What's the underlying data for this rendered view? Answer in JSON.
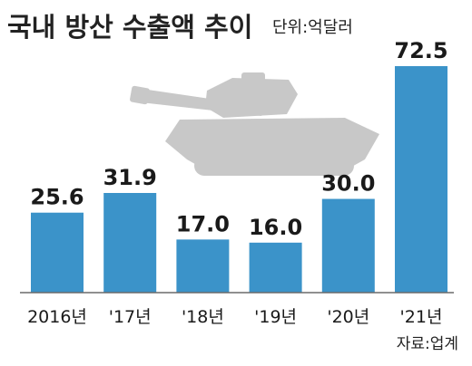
{
  "chart_data": {
    "type": "bar",
    "title": "국내 방산 수출액 추이",
    "unit": "단위:억달러",
    "categories": [
      "2016년",
      "'17년",
      "'18년",
      "'19년",
      "'20년",
      "'21년"
    ],
    "values": [
      25.6,
      31.9,
      17.0,
      16.0,
      30.0,
      72.5
    ],
    "value_labels": [
      "25.6",
      "31.9",
      "17.0",
      "16.0",
      "30.0",
      "72.5"
    ],
    "source": "자료:업계",
    "ylim": [
      0,
      72.5
    ],
    "grid": false,
    "bar_color": "#3b93c9",
    "illustration": "howitzer-silhouette"
  }
}
